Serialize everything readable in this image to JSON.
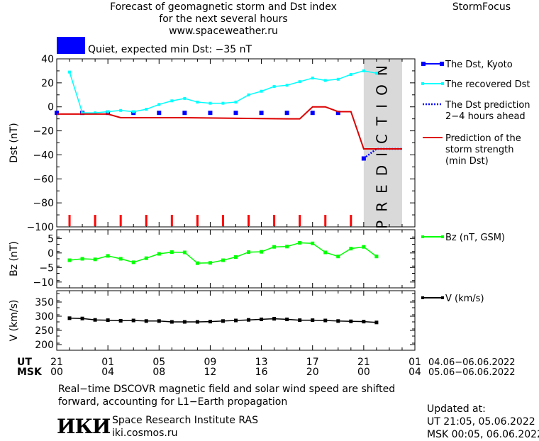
{
  "header": {
    "title_lines": [
      "Forecast of geomagnetic storm and Dst index",
      "for the next several hours",
      "www.spaceweather.ru"
    ],
    "brand": "StormFocus",
    "status_text": "Quiet, expected min Dst: −35 nT",
    "status_color": "#0000ff"
  },
  "chart_data": [
    {
      "type": "line",
      "ylabel": "Dst (nT)",
      "ylim": [
        -100,
        40
      ],
      "yticks": [
        40,
        20,
        0,
        -20,
        -40,
        -60,
        -80,
        -100
      ],
      "xlim": [
        0,
        28
      ],
      "grid": false,
      "legend": "right",
      "shaded_region": {
        "x": [
          24,
          27
        ],
        "label": "PREDICTION",
        "color": "#d9d9d9"
      },
      "series": [
        {
          "name": "The Dst, Kyoto",
          "color": "#0000ff",
          "style": "squares",
          "x": [
            0,
            2,
            4,
            6,
            8,
            10,
            12,
            14,
            16,
            18,
            20,
            22,
            24
          ],
          "y": [
            -5,
            -5,
            -5,
            -5,
            -5,
            -5,
            -5,
            -5,
            -5,
            -5,
            -5,
            -5,
            -43
          ]
        },
        {
          "name": "The recovered Dst",
          "color": "#00ffff",
          "style": "line-dots",
          "x": [
            1,
            2,
            3,
            4,
            5,
            6,
            7,
            8,
            9,
            10,
            11,
            12,
            13,
            14,
            15,
            16,
            17,
            18,
            19,
            20,
            21,
            22,
            23,
            24,
            25
          ],
          "y": [
            29,
            -5,
            -5,
            -4,
            -3,
            -4,
            -2,
            2,
            5,
            7,
            4,
            3,
            3,
            4,
            10,
            13,
            17,
            18,
            21,
            24,
            22,
            23,
            27,
            30,
            28
          ]
        },
        {
          "name": "The Dst prediction 2–4 hours ahead",
          "color": "#0000ff",
          "style": "dotted",
          "x": [
            24,
            25,
            27
          ],
          "y": [
            -43,
            -35,
            -35
          ]
        },
        {
          "name": "Prediction of the storm strength (min Dst)",
          "color": "#dd0000",
          "style": "line",
          "x": [
            0,
            4,
            5,
            10,
            18,
            19,
            20,
            21,
            22,
            23,
            24,
            27
          ],
          "y": [
            -6,
            -6,
            -9,
            -9,
            -10,
            -10,
            0,
            0,
            -4,
            -4,
            -35,
            -35
          ]
        }
      ],
      "markers": {
        "name": "storm ticks",
        "color": "#ff0000",
        "x": [
          1,
          3,
          5,
          7,
          9,
          11,
          13,
          15,
          17,
          19,
          21,
          23
        ]
      }
    },
    {
      "type": "line",
      "ylabel": "Bz (nT)",
      "ylim": [
        -12,
        8
      ],
      "yticks": [
        5,
        0,
        -5,
        -10
      ],
      "xlim": [
        0,
        28
      ],
      "series": [
        {
          "name": "Bz (nT, GSM)",
          "color": "#00ff00",
          "x": [
            1,
            2,
            3,
            4,
            5,
            6,
            7,
            8,
            9,
            10,
            11,
            12,
            13,
            14,
            15,
            16,
            17,
            18,
            19,
            20,
            21,
            22,
            23,
            24,
            25
          ],
          "y": [
            -2.5,
            -2,
            -2.2,
            -1,
            -2,
            -3.2,
            -1.8,
            -0.3,
            0.3,
            0.2,
            -3.5,
            -3.4,
            -2.5,
            -1.4,
            0.3,
            0.4,
            2.1,
            2.2,
            3.5,
            3.3,
            0.2,
            -1.2,
            1.5,
            2.1,
            -1.2
          ]
        }
      ]
    },
    {
      "type": "line",
      "ylabel": "V (km/s)",
      "ylim": [
        180,
        390
      ],
      "yticks": [
        350,
        300,
        250,
        200
      ],
      "xlim": [
        0,
        28
      ],
      "series": [
        {
          "name": "V (km/s)",
          "color": "#000000",
          "x": [
            1,
            2,
            3,
            4,
            5,
            6,
            7,
            8,
            9,
            10,
            11,
            12,
            13,
            14,
            15,
            16,
            17,
            18,
            19,
            20,
            21,
            22,
            23,
            24,
            25
          ],
          "y": [
            293,
            292,
            287,
            286,
            284,
            285,
            283,
            283,
            280,
            280,
            280,
            281,
            283,
            285,
            287,
            289,
            291,
            289,
            286,
            286,
            285,
            283,
            282,
            281,
            278
          ]
        }
      ]
    }
  ],
  "x_axis": {
    "ut_label": "UT",
    "msk_label": "MSK",
    "ut_ticks": [
      "21",
      "01",
      "05",
      "09",
      "13",
      "17",
      "21",
      "01"
    ],
    "msk_ticks": [
      "00",
      "04",
      "08",
      "12",
      "16",
      "20",
      "00",
      "04"
    ],
    "tick_x": [
      0,
      4,
      8,
      12,
      16,
      20,
      24,
      28
    ],
    "ut_range": "04.06−06.06.2022",
    "msk_range": "05.06−06.06.2022"
  },
  "footer": {
    "note_line1": "Real−time DSCOVR magnetic field and solar wind speed are shifted",
    "note_line2": "forward, accounting for L1−Earth propagation",
    "logo_text": "ИКИ",
    "institute": "Space Research Institute RAS",
    "site": "iki.cosmos.ru",
    "updated_label": "Updated at:",
    "updated_ut": "UT   21:05, 05.06.2022",
    "updated_msk": "MSK 00:05, 06.06.2022"
  }
}
